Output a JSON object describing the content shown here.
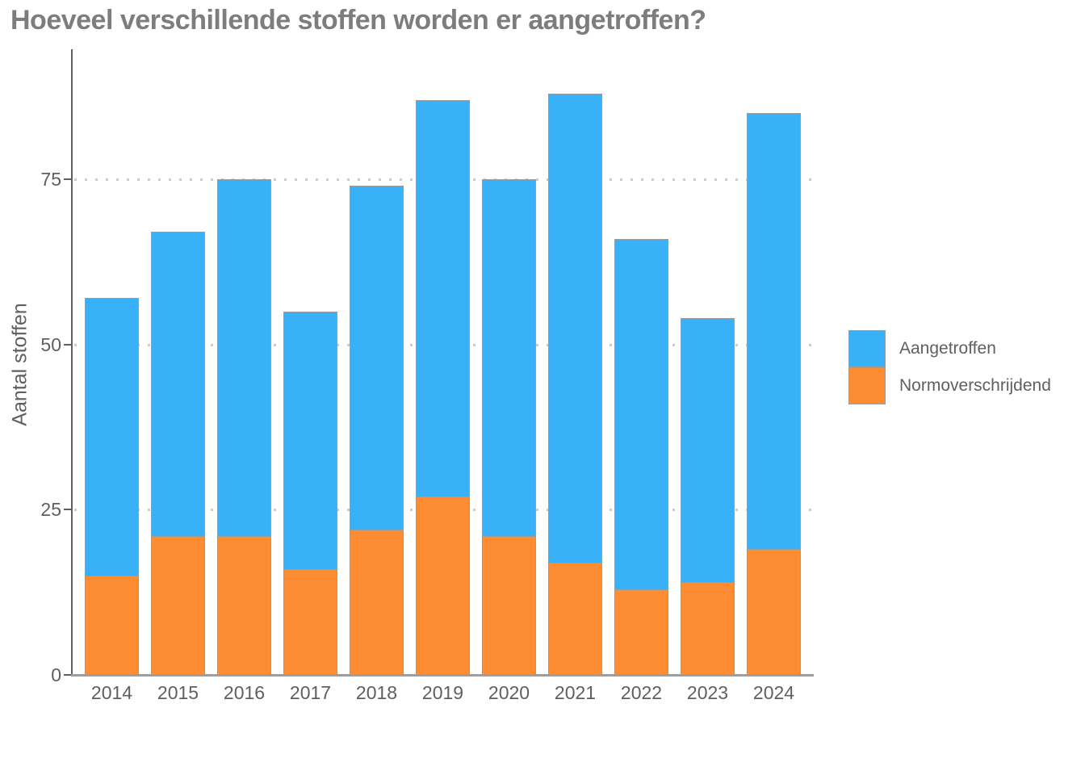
{
  "title": "Hoeveel verschillende stoffen worden er aangetroffen?",
  "y_axis": {
    "label": "Aantal stoffen"
  },
  "legend": [
    {
      "label": "Aangetroffen",
      "color": "#39b1f8"
    },
    {
      "label": "Normoverschrijdend",
      "color": "#fd8c33"
    }
  ],
  "chart_data": {
    "type": "bar",
    "stacked": true,
    "title": "Hoeveel verschillende stoffen worden er aangetroffen?",
    "xlabel": "",
    "ylabel": "Aantal stoffen",
    "categories": [
      "2014",
      "2015",
      "2016",
      "2017",
      "2018",
      "2019",
      "2020",
      "2021",
      "2022",
      "2023",
      "2024"
    ],
    "series": [
      {
        "name": "Normoverschrijdend",
        "color": "#fd8c33",
        "values": [
          15,
          21,
          21,
          16,
          22,
          27,
          21,
          17,
          13,
          14,
          19
        ]
      },
      {
        "name": "Aangetroffen",
        "color": "#39b1f8",
        "values": [
          42,
          46,
          54,
          39,
          52,
          60,
          54,
          71,
          53,
          40,
          66
        ]
      }
    ],
    "stack_totals": [
      57,
      67,
      75,
      55,
      74,
      87,
      75,
      88,
      66,
      54,
      85
    ],
    "ylim": [
      0,
      95
    ],
    "yticks": [
      0,
      25,
      50,
      75
    ],
    "grid": "horizontal dotted at 25/50/75",
    "legend_position": "right"
  }
}
